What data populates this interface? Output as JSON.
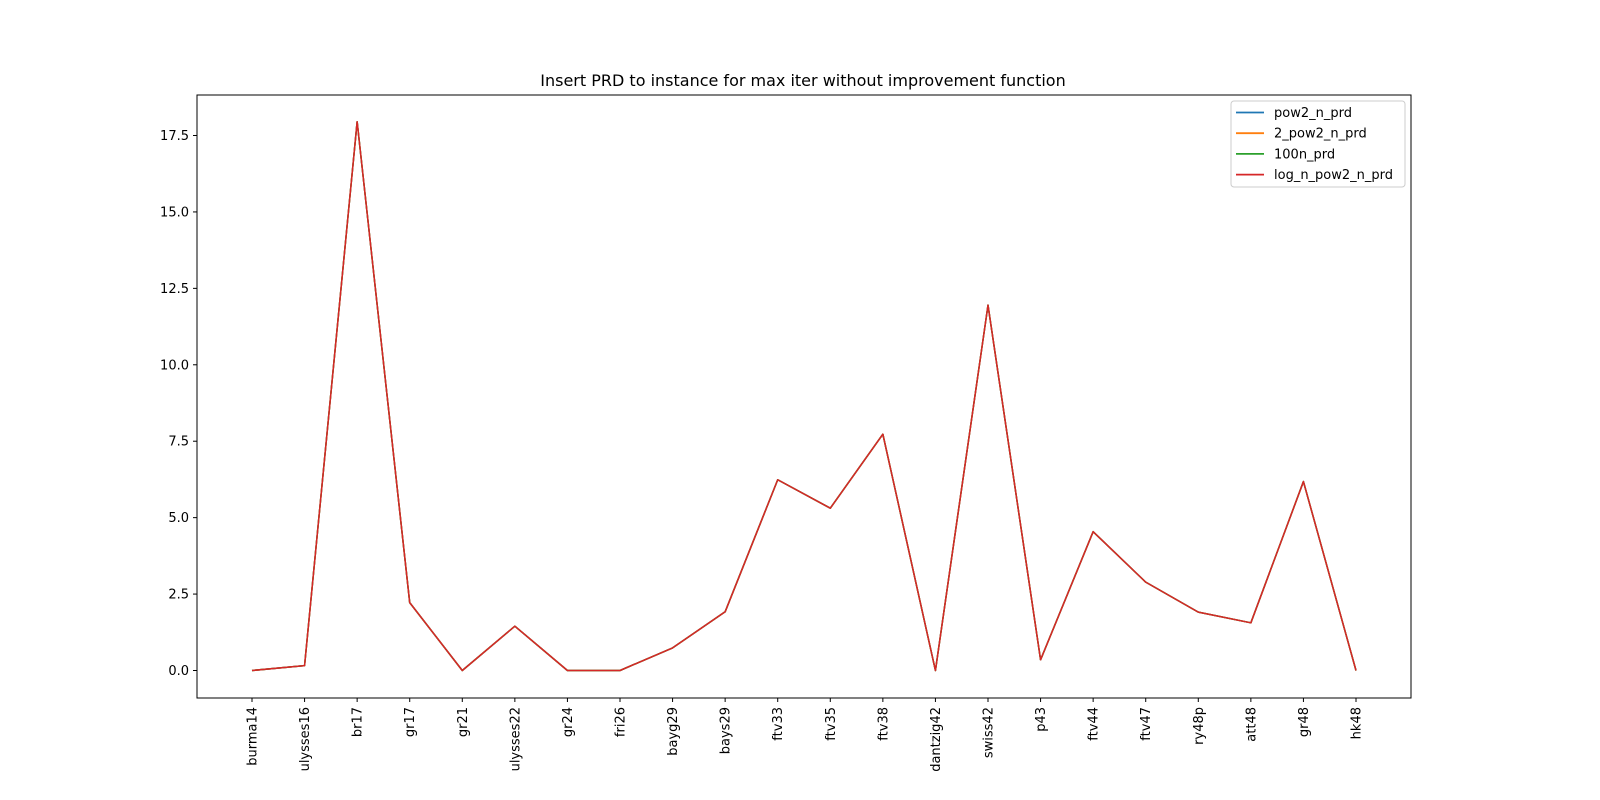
{
  "chart_data": {
    "type": "line",
    "title": "Insert PRD to instance for max iter without improvement function",
    "xlabel": "",
    "ylabel": "",
    "categories": [
      "burma14",
      "ulysses16",
      "br17",
      "gr17",
      "gr21",
      "ulysses22",
      "gr24",
      "fri26",
      "bayg29",
      "bays29",
      "ftv33",
      "ftv35",
      "ftv38",
      "dantzig42",
      "swiss42",
      "p43",
      "ftv44",
      "ftv47",
      "ry48p",
      "att48",
      "gr48",
      "hk48"
    ],
    "y_ticks": [
      "0.0",
      "2.5",
      "5.0",
      "7.5",
      "10.0",
      "12.5",
      "15.0",
      "17.5"
    ],
    "ylim": [
      -0.9,
      18.8
    ],
    "legend_position": "top-right",
    "grid": false,
    "series": [
      {
        "name": "pow2_n_prd",
        "color": "#1f77b4",
        "values": [
          0.0,
          0.16,
          17.95,
          2.22,
          0.0,
          1.45,
          0.0,
          0.0,
          0.74,
          1.92,
          6.24,
          5.31,
          7.73,
          0.0,
          11.95,
          0.35,
          4.54,
          2.89,
          1.91,
          1.56,
          6.18,
          0.0
        ]
      },
      {
        "name": "2_pow2_n_prd",
        "color": "#ff7f0e",
        "values": [
          0.0,
          0.16,
          17.95,
          2.22,
          0.0,
          1.45,
          0.0,
          0.0,
          0.74,
          1.92,
          6.24,
          5.31,
          7.73,
          0.0,
          11.95,
          0.35,
          4.54,
          2.89,
          1.91,
          1.56,
          6.18,
          0.0
        ]
      },
      {
        "name": "100n_prd",
        "color": "#2ca02c",
        "values": [
          0.0,
          0.16,
          17.95,
          2.22,
          0.0,
          1.45,
          0.0,
          0.0,
          0.74,
          1.92,
          6.24,
          5.31,
          7.73,
          0.0,
          11.95,
          0.35,
          4.54,
          2.89,
          1.91,
          1.56,
          6.18,
          0.0
        ]
      },
      {
        "name": "log_n_pow2_n_prd",
        "color": "#d62728",
        "values": [
          0.0,
          0.16,
          17.95,
          2.22,
          0.0,
          1.45,
          0.0,
          0.0,
          0.74,
          1.92,
          6.24,
          5.31,
          7.73,
          0.0,
          11.95,
          0.35,
          4.54,
          2.89,
          1.91,
          1.56,
          6.18,
          0.0
        ]
      }
    ]
  }
}
